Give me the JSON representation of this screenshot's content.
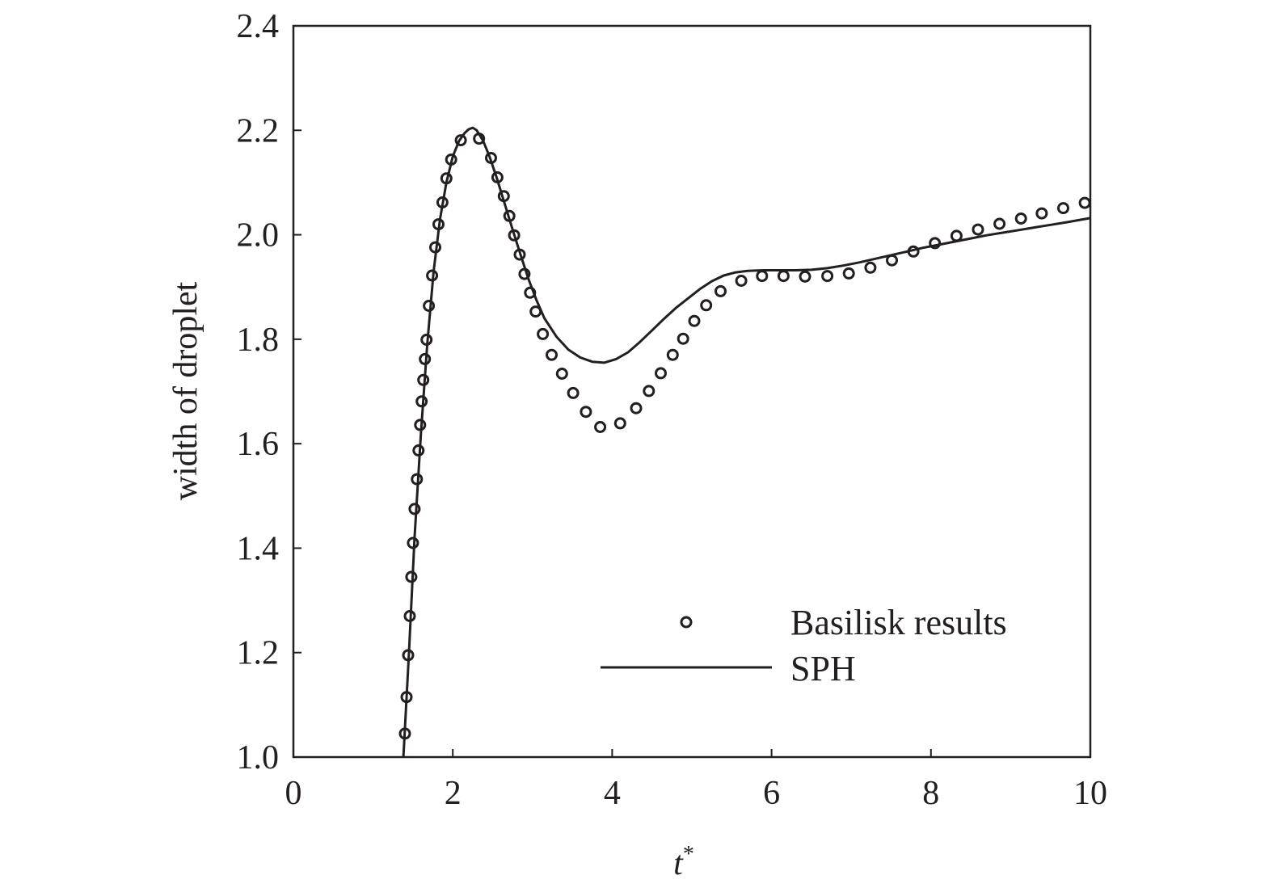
{
  "chart_data": {
    "type": "line",
    "xlabel": "t",
    "xlabel_superscript": "*",
    "ylabel": "width of droplet",
    "xlim": [
      0,
      10
    ],
    "ylim": [
      1.0,
      2.4
    ],
    "xticks": [
      0,
      2,
      4,
      6,
      8,
      10
    ],
    "xtick_labels": [
      "0",
      "2",
      "4",
      "6",
      "8",
      "10"
    ],
    "yticks": [
      1.0,
      1.2,
      1.4,
      1.6,
      1.8,
      2.0,
      2.2,
      2.4
    ],
    "ytick_labels": [
      "1.0",
      "1.2",
      "1.4",
      "1.6",
      "1.8",
      "2.0",
      "2.2",
      "2.4"
    ],
    "grid": false,
    "legend_position": "lower-right",
    "colors": {
      "ink": "#231f20",
      "background": "#ffffff"
    },
    "series": [
      {
        "name": "Basilisk results",
        "style": "open-circle markers",
        "x": [
          1.4,
          1.42,
          1.44,
          1.46,
          1.48,
          1.5,
          1.52,
          1.55,
          1.57,
          1.59,
          1.61,
          1.63,
          1.65,
          1.67,
          1.7,
          1.74,
          1.78,
          1.82,
          1.87,
          1.92,
          1.98,
          2.1,
          2.33,
          2.48,
          2.56,
          2.64,
          2.71,
          2.77,
          2.84,
          2.9,
          2.97,
          3.04,
          3.13,
          3.24,
          3.37,
          3.51,
          3.67,
          3.85,
          4.1,
          4.3,
          4.46,
          4.61,
          4.76,
          4.89,
          5.03,
          5.18,
          5.36,
          5.62,
          5.88,
          6.15,
          6.42,
          6.7,
          6.97,
          7.24,
          7.51,
          7.78,
          8.05,
          8.32,
          8.59,
          8.86,
          9.13,
          9.39,
          9.66,
          9.93
        ],
        "y": [
          1.045,
          1.115,
          1.195,
          1.27,
          1.345,
          1.41,
          1.475,
          1.532,
          1.587,
          1.636,
          1.681,
          1.722,
          1.762,
          1.799,
          1.864,
          1.922,
          1.976,
          2.02,
          2.062,
          2.108,
          2.144,
          2.181,
          2.184,
          2.147,
          2.11,
          2.074,
          2.036,
          1.999,
          1.962,
          1.925,
          1.889,
          1.853,
          1.81,
          1.77,
          1.734,
          1.697,
          1.661,
          1.632,
          1.639,
          1.668,
          1.701,
          1.735,
          1.77,
          1.801,
          1.835,
          1.865,
          1.892,
          1.912,
          1.921,
          1.921,
          1.92,
          1.921,
          1.926,
          1.937,
          1.951,
          1.968,
          1.984,
          1.998,
          2.01,
          2.021,
          2.031,
          2.041,
          2.051,
          2.061
        ]
      },
      {
        "name": "SPH",
        "style": "solid line",
        "x": [
          1.38,
          1.45,
          1.52,
          1.6,
          1.68,
          1.76,
          1.84,
          1.92,
          2.0,
          2.08,
          2.15,
          2.2,
          2.25,
          2.3,
          2.38,
          2.46,
          2.55,
          2.65,
          2.75,
          2.85,
          2.95,
          3.05,
          3.15,
          3.3,
          3.45,
          3.6,
          3.75,
          3.9,
          4.05,
          4.2,
          4.35,
          4.5,
          4.65,
          4.8,
          4.95,
          5.1,
          5.25,
          5.4,
          5.55,
          5.7,
          5.9,
          6.1,
          6.3,
          6.5,
          6.7,
          6.9,
          7.1,
          7.3,
          7.5,
          7.7,
          7.9,
          8.1,
          8.3,
          8.5,
          8.7,
          8.9,
          9.1,
          9.3,
          9.5,
          9.7,
          10.0
        ],
        "y": [
          1.0,
          1.2,
          1.42,
          1.62,
          1.79,
          1.93,
          2.03,
          2.1,
          2.15,
          2.18,
          2.195,
          2.202,
          2.205,
          2.2,
          2.18,
          2.15,
          2.11,
          2.06,
          2.01,
          1.962,
          1.915,
          1.875,
          1.84,
          1.805,
          1.78,
          1.765,
          1.757,
          1.755,
          1.762,
          1.775,
          1.795,
          1.817,
          1.839,
          1.86,
          1.878,
          1.896,
          1.911,
          1.922,
          1.928,
          1.931,
          1.932,
          1.932,
          1.932,
          1.933,
          1.936,
          1.941,
          1.947,
          1.954,
          1.961,
          1.968,
          1.975,
          1.981,
          1.987,
          1.993,
          1.999,
          2.004,
          2.009,
          2.014,
          2.019,
          2.024,
          2.032
        ]
      }
    ]
  }
}
